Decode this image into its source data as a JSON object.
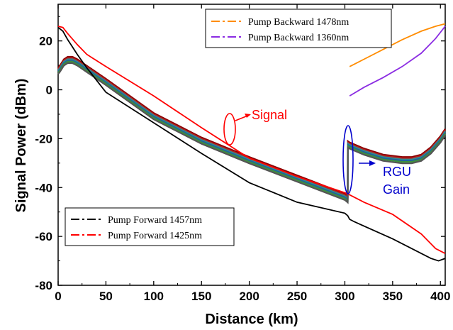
{
  "chart_data": {
    "type": "line",
    "xlabel": "Distance (km)",
    "ylabel": "Signal Power (dBm)",
    "xlim": [
      0,
      405
    ],
    "ylim": [
      -80,
      35
    ],
    "xticks": [
      "0",
      "50",
      "100",
      "150",
      "200",
      "250",
      "300",
      "350",
      "400"
    ],
    "yticks": [
      "20",
      "0",
      "-20",
      "-40",
      "-60",
      "-80"
    ],
    "grid": false,
    "series": [
      {
        "name": "Pump Backward 1478nm",
        "color": "#ff8c00",
        "x": [
          305,
          320,
          340,
          360,
          380,
          395,
          405
        ],
        "y": [
          9.5,
          12.5,
          16.5,
          20.5,
          24,
          26,
          27
        ]
      },
      {
        "name": "Pump Backward 1360nm",
        "color": "#8a2be2",
        "x": [
          305,
          320,
          340,
          360,
          380,
          395,
          405
        ],
        "y": [
          -2.5,
          1,
          5,
          9.5,
          15,
          21,
          26
        ]
      },
      {
        "name": "Pump Forward 1457nm",
        "color": "#000000",
        "x": [
          0,
          5,
          10,
          20,
          30,
          50,
          100,
          150,
          200,
          250,
          300,
          303,
          305,
          310,
          350,
          390,
          398,
          405
        ],
        "y": [
          25.5,
          24,
          20.5,
          14.5,
          9,
          -1,
          -13.5,
          -26,
          -38,
          -46,
          -50.5,
          -51.5,
          -53,
          -54,
          -61,
          -69,
          -70,
          -69
        ]
      },
      {
        "name": "Pump Forward 1425nm",
        "color": "#ff0000",
        "x": [
          0,
          5,
          10,
          20,
          30,
          50,
          100,
          150,
          200,
          250,
          303,
          305,
          320,
          350,
          380,
          395,
          405
        ],
        "y": [
          26,
          25.5,
          23,
          18.5,
          14.5,
          9.5,
          -2.5,
          -15.5,
          -28,
          -35.5,
          -42.5,
          -43,
          -46,
          -51,
          -59,
          -65,
          -67
        ]
      }
    ],
    "signal_bundle": {
      "colors": [
        "#8b0000",
        "#b22222",
        "#2f8f8f",
        "#1f5f9f",
        "#3d8f3d",
        "#555555"
      ],
      "offsets": [
        0,
        0.5,
        1.0,
        1.5,
        2.0,
        2.6
      ],
      "x": [
        0,
        2,
        6,
        10,
        15,
        20,
        50,
        100,
        150,
        200,
        250,
        300,
        303,
        303.1,
        305,
        320,
        340,
        360,
        370,
        380,
        390,
        400,
        405
      ],
      "y": [
        9,
        10,
        12.5,
        13.5,
        13.5,
        12.5,
        4.5,
        -9.5,
        -19.5,
        -27.5,
        -35,
        -42.5,
        -43.5,
        -21,
        -21.5,
        -24,
        -26.5,
        -27.5,
        -27.5,
        -26.5,
        -23.5,
        -19,
        -16
      ]
    },
    "annotations": {
      "signal": "Signal",
      "rgu_line1": "RGU",
      "rgu_line2": "Gain",
      "signal_color": "#ff0000",
      "rgu_color": "#0000cc"
    }
  }
}
